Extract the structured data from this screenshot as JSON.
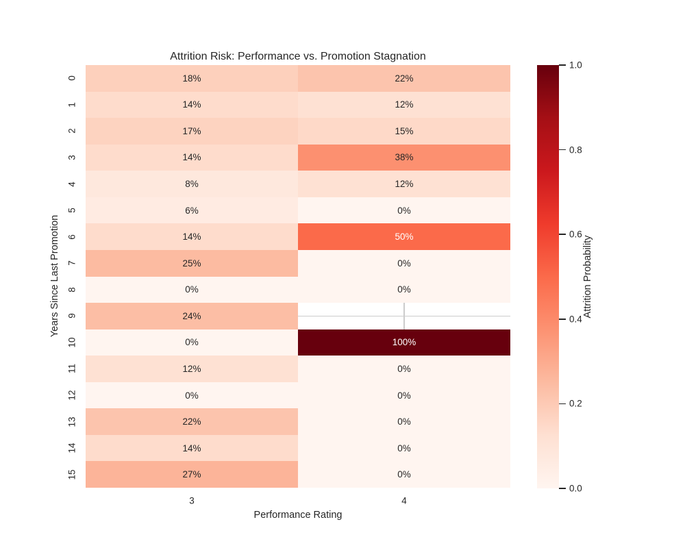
{
  "chart_data": {
    "type": "heatmap",
    "title": "Attrition Risk: Performance vs. Promotion Stagnation",
    "xlabel": "Performance Rating",
    "ylabel": "Years Since Last Promotion",
    "x_categories": [
      "3",
      "4"
    ],
    "y_categories": [
      "0",
      "1",
      "2",
      "3",
      "4",
      "5",
      "6",
      "7",
      "8",
      "9",
      "10",
      "11",
      "12",
      "13",
      "14",
      "15"
    ],
    "values": [
      [
        0.18,
        0.22
      ],
      [
        0.14,
        0.12
      ],
      [
        0.17,
        0.15
      ],
      [
        0.14,
        0.38
      ],
      [
        0.08,
        0.12
      ],
      [
        0.06,
        0.0
      ],
      [
        0.14,
        0.5
      ],
      [
        0.25,
        0.0
      ],
      [
        0.0,
        0.0
      ],
      [
        0.24,
        null
      ],
      [
        0.0,
        1.0
      ],
      [
        0.12,
        0.0
      ],
      [
        0.0,
        0.0
      ],
      [
        0.22,
        0.0
      ],
      [
        0.14,
        0.0
      ],
      [
        0.27,
        0.0
      ]
    ],
    "annotations": [
      [
        "18%",
        "22%"
      ],
      [
        "14%",
        "12%"
      ],
      [
        "17%",
        "15%"
      ],
      [
        "14%",
        "38%"
      ],
      [
        "8%",
        "12%"
      ],
      [
        "6%",
        "0%"
      ],
      [
        "14%",
        "50%"
      ],
      [
        "25%",
        "0%"
      ],
      [
        "0%",
        "0%"
      ],
      [
        "24%",
        null
      ],
      [
        "0%",
        "100%"
      ],
      [
        "12%",
        "0%"
      ],
      [
        "0%",
        "0%"
      ],
      [
        "22%",
        "0%"
      ],
      [
        "14%",
        "0%"
      ],
      [
        "27%",
        "0%"
      ]
    ],
    "colormap": "Reds",
    "colormap_anchors": [
      "#fff5f0",
      "#fee0d2",
      "#fcbba1",
      "#fc9272",
      "#fb6a4a",
      "#ef3b2c",
      "#cb181d",
      "#a50f15",
      "#67000d"
    ],
    "vmin": 0.0,
    "vmax": 1.0,
    "colorbar": {
      "label": "Attrition Probability",
      "tick_labels": [
        "1.0",
        "0.8",
        "0.6",
        "0.4",
        "0.2",
        "0.0"
      ],
      "tick_values": [
        1.0,
        0.8,
        0.6,
        0.4,
        0.2,
        0.0
      ],
      "position": "right"
    },
    "grid": "off-except-missing-cell",
    "missing_cell": {
      "row": "9",
      "col": "4"
    },
    "colors": {
      "background": "#ffffff",
      "text": "#262626",
      "annotation_light": "#ffffff",
      "gridline": "#cccccc"
    }
  }
}
